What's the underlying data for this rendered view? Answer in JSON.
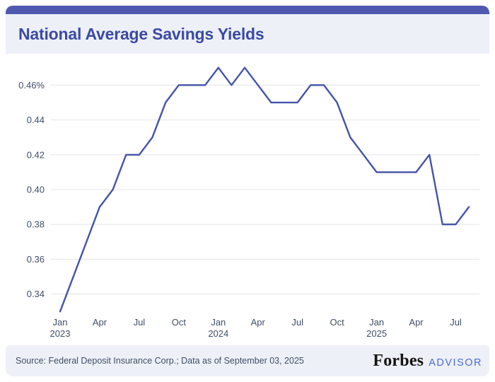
{
  "header": {
    "title": "National Average Savings Yields"
  },
  "footer": {
    "source": "Source: Federal Deposit Insurance Corp.; Data as of September 03, 2025",
    "brand": "Forbes",
    "brand_suffix": "ADVISOR"
  },
  "colors": {
    "accent_bar": "#4d5ab0",
    "band_bg": "#eef0f8",
    "title": "#3b4aa3",
    "line": "#4354a8",
    "grid": "#e9eaee",
    "axis_label": "#3f4e66",
    "advisor": "#4a6bdb",
    "forbes": "#141414"
  },
  "chart_data": {
    "type": "line",
    "title": "National Average Savings Yields",
    "unit": "percent",
    "x": [
      "Jan 2023",
      "Feb 2023",
      "Mar 2023",
      "Apr 2023",
      "May 2023",
      "Jun 2023",
      "Jul 2023",
      "Aug 2023",
      "Sep 2023",
      "Oct 2023",
      "Nov 2023",
      "Dec 2023",
      "Jan 2024",
      "Feb 2024",
      "Mar 2024",
      "Apr 2024",
      "May 2024",
      "Jun 2024",
      "Jul 2024",
      "Aug 2024",
      "Sep 2024",
      "Oct 2024",
      "Nov 2024",
      "Dec 2024",
      "Jan 2025",
      "Feb 2025",
      "Mar 2025",
      "Apr 2025",
      "May 2025",
      "Jun 2025",
      "Jul 2025",
      "Aug 2025"
    ],
    "values": [
      0.33,
      0.35,
      0.37,
      0.39,
      0.4,
      0.42,
      0.42,
      0.43,
      0.45,
      0.46,
      0.46,
      0.46,
      0.47,
      0.46,
      0.47,
      0.46,
      0.45,
      0.45,
      0.45,
      0.46,
      0.46,
      0.45,
      0.43,
      0.42,
      0.41,
      0.41,
      0.41,
      0.41,
      0.42,
      0.38,
      0.38,
      0.39
    ],
    "ylim": [
      0.33,
      0.47
    ],
    "yticks": [
      0.46,
      0.44,
      0.42,
      0.4,
      0.38,
      0.36,
      0.34
    ],
    "ytick_labels": [
      "0.46%",
      "0.44",
      "0.42",
      "0.40",
      "0.38",
      "0.36",
      "0.34"
    ],
    "xticks": [
      {
        "index": 0,
        "label": "Jan",
        "year": "2023"
      },
      {
        "index": 3,
        "label": "Apr"
      },
      {
        "index": 6,
        "label": "Jul"
      },
      {
        "index": 9,
        "label": "Oct"
      },
      {
        "index": 12,
        "label": "Jan",
        "year": "2024"
      },
      {
        "index": 15,
        "label": "Apr"
      },
      {
        "index": 18,
        "label": "Jul"
      },
      {
        "index": 21,
        "label": "Oct"
      },
      {
        "index": 24,
        "label": "Jan",
        "year": "2025"
      },
      {
        "index": 27,
        "label": "Apr"
      },
      {
        "index": 30,
        "label": "Jul"
      }
    ],
    "grid": "horizontal-only",
    "legend": "none",
    "markers": "none"
  }
}
